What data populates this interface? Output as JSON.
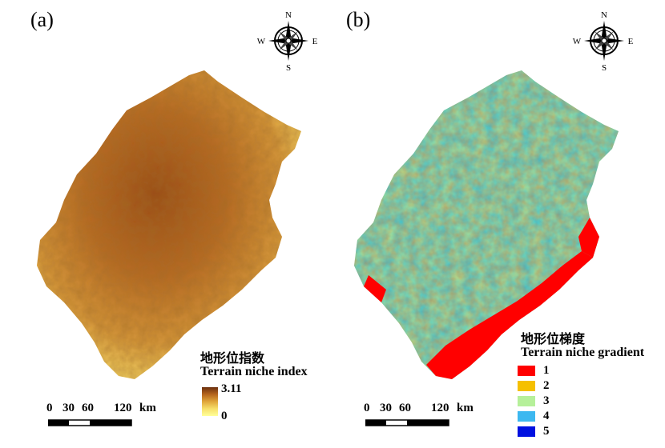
{
  "panel_a": {
    "label": "(a)",
    "compass": {
      "n": "N",
      "s": "S",
      "e": "E",
      "w": "W"
    },
    "legend": {
      "title_cn": "地形位指数",
      "title_en": "Terrain niche index",
      "max": "3.11",
      "min": "0",
      "ramp_colors": [
        "#6b2f0e",
        "#b5651d",
        "#e0a63a",
        "#f7e06a",
        "#ffff99"
      ]
    },
    "scale": {
      "ticks": [
        "0",
        "30",
        "60",
        "120"
      ],
      "unit": "km"
    }
  },
  "panel_b": {
    "label": "(b)",
    "compass": {
      "n": "N",
      "s": "S",
      "e": "E",
      "w": "W"
    },
    "legend": {
      "title_cn": "地形位梯度",
      "title_en": "Terrain niche gradient",
      "classes": [
        {
          "label": "1",
          "color": "#ff0000"
        },
        {
          "label": "2",
          "color": "#f5c000"
        },
        {
          "label": "3",
          "color": "#b6f09a"
        },
        {
          "label": "4",
          "color": "#3db8f0"
        },
        {
          "label": "5",
          "color": "#0010e0"
        }
      ]
    },
    "scale": {
      "ticks": [
        "0",
        "30",
        "60",
        "120"
      ],
      "unit": "km"
    }
  }
}
